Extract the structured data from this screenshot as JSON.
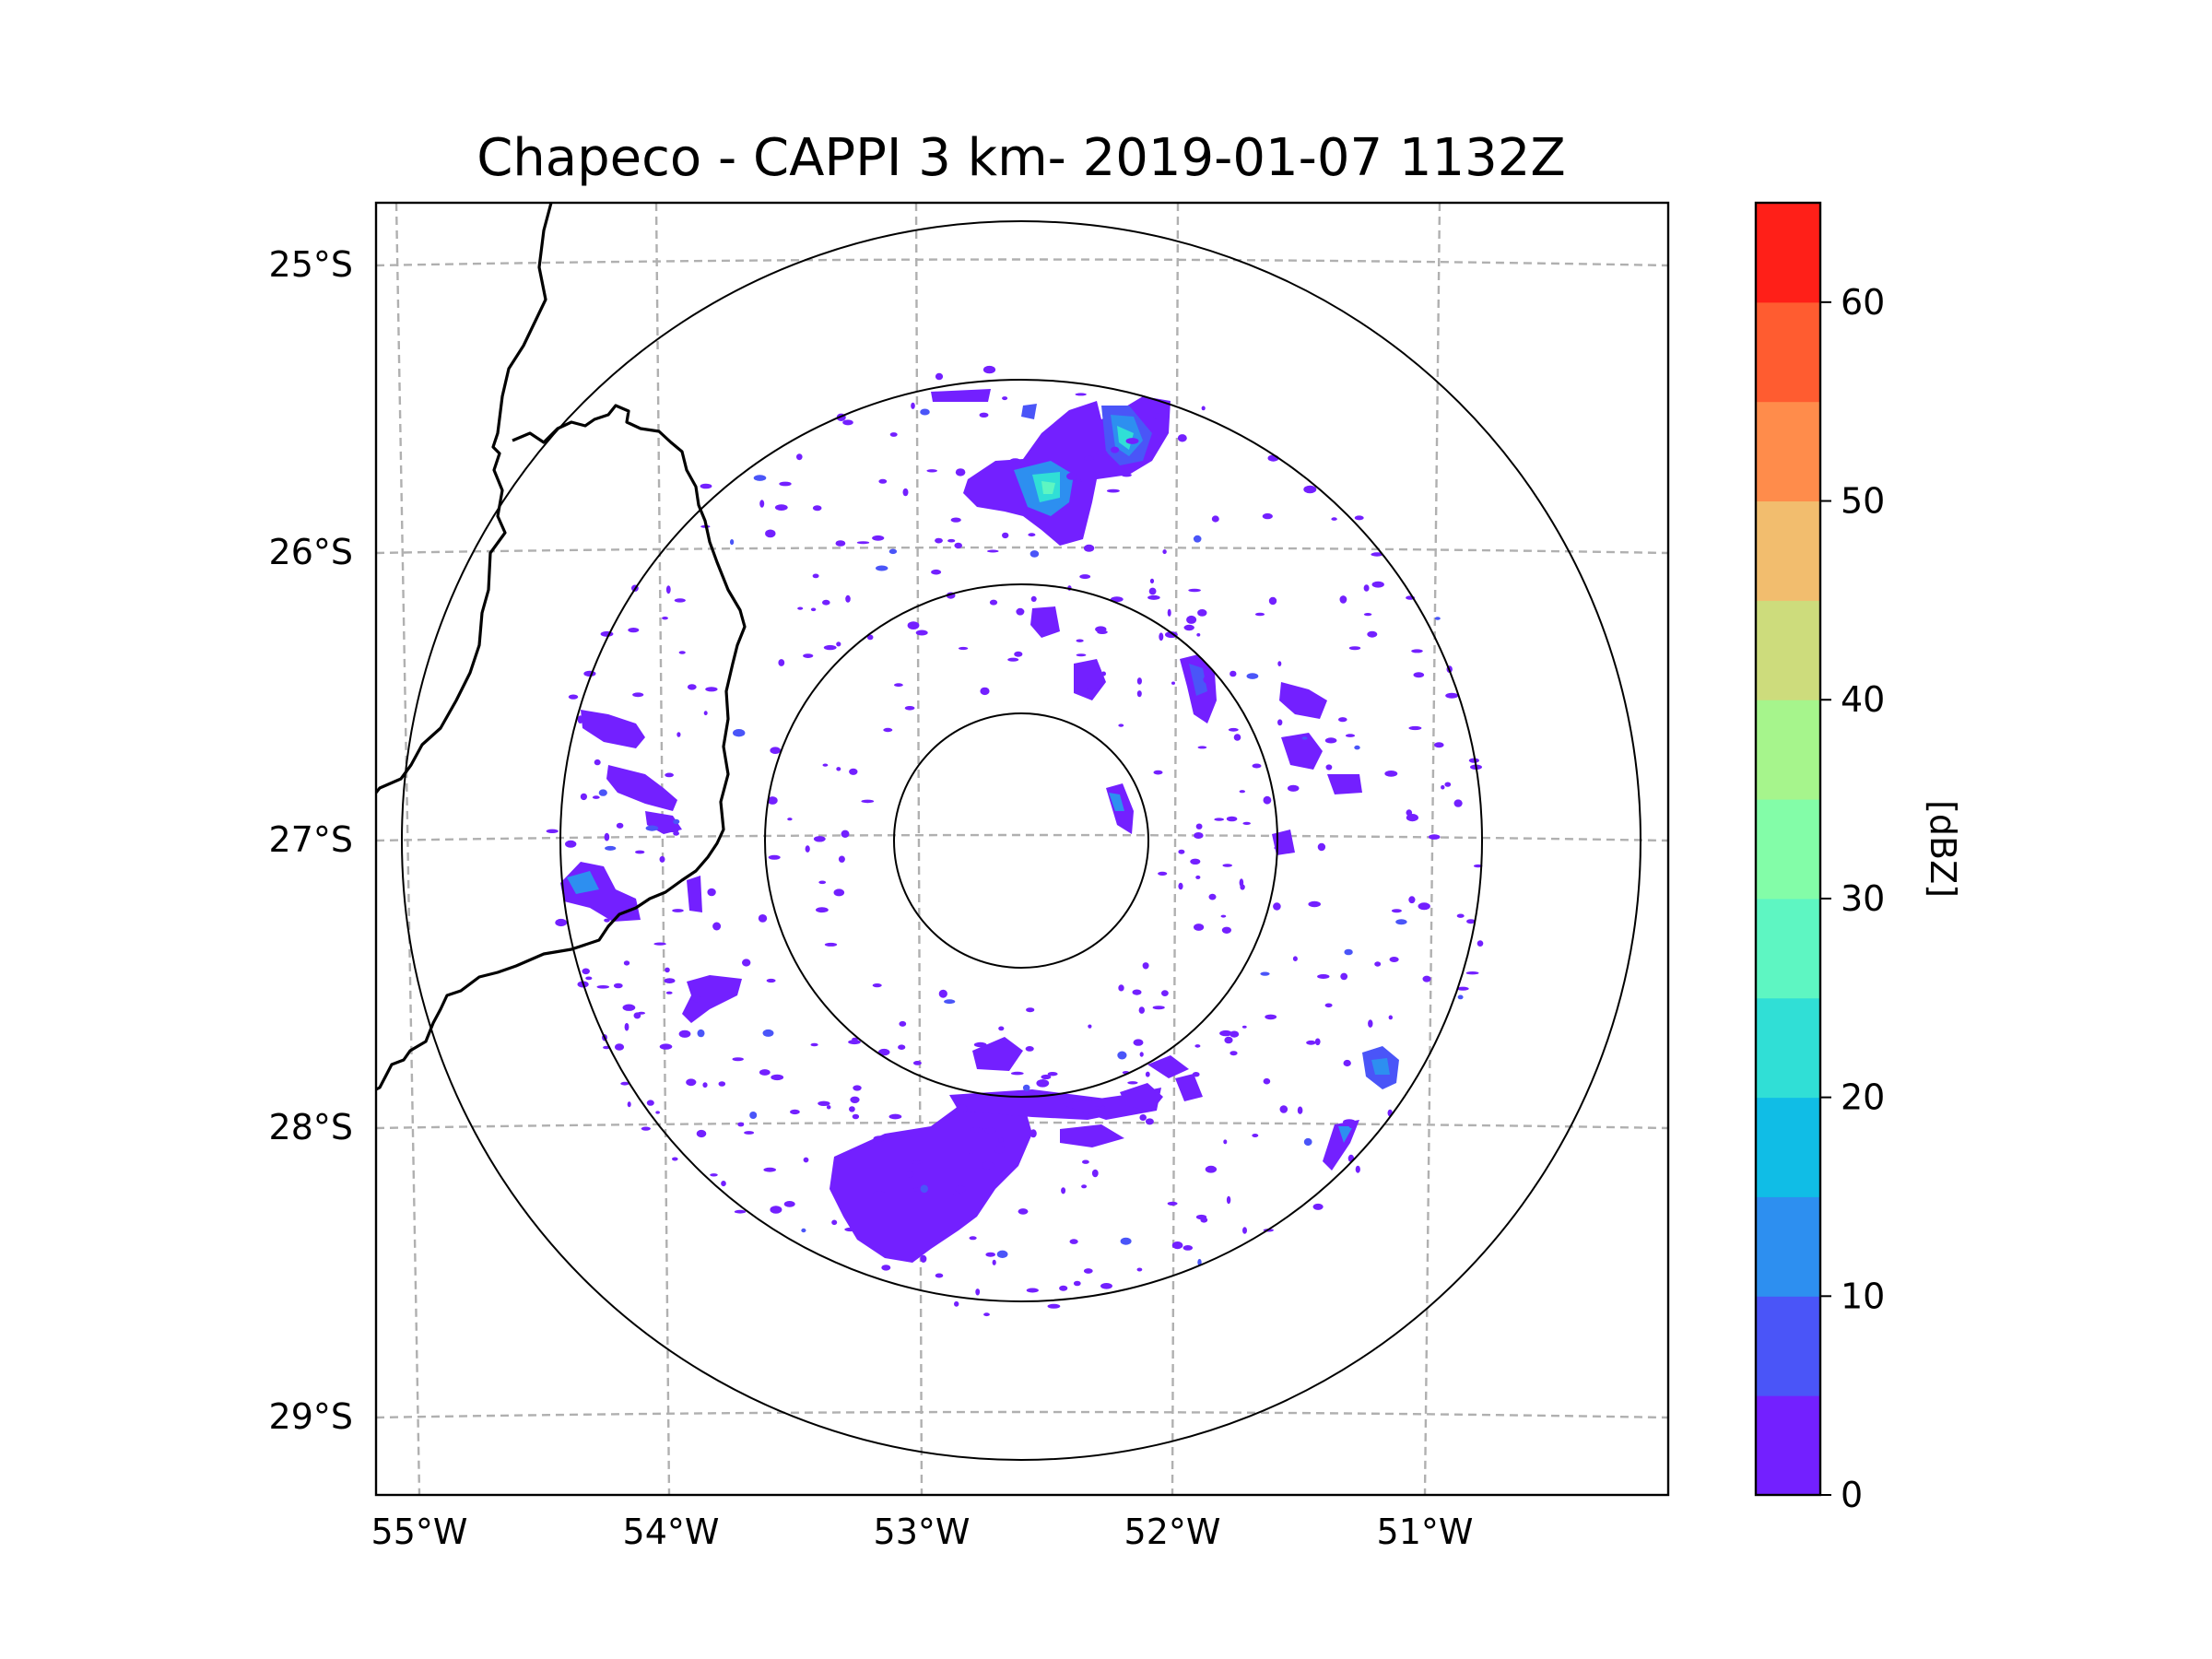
{
  "title": "Chapeco - CAPPI 3 km- 2019-01-07 1132Z",
  "map": {
    "lat_labels": [
      "25°S",
      "26°S",
      "27°S",
      "28°S",
      "29°S"
    ],
    "lon_labels": [
      "55°W",
      "54°W",
      "53°W",
      "52°W",
      "51°W"
    ],
    "lat_values": [
      -25,
      -26,
      -27,
      -28,
      -29
    ],
    "lon_values": [
      -55,
      -54,
      -53,
      -52,
      -51
    ],
    "range_rings_count": 4,
    "gridlines": "dashed gray"
  },
  "colorbar": {
    "label": "[dBZ]",
    "tick_labels": [
      "0",
      "10",
      "20",
      "30",
      "40",
      "50",
      "60"
    ],
    "tick_values": [
      0,
      10,
      20,
      30,
      40,
      50,
      60
    ],
    "range": [
      0,
      65
    ],
    "colors": [
      "#7320ff",
      "#4a55f8",
      "#2d8ff0",
      "#10bde6",
      "#30dfd6",
      "#5ef6c2",
      "#83fda8",
      "#a6f58c",
      "#cddc7c",
      "#f2bd6e",
      "#ff8c4b",
      "#ff5c30",
      "#ff1f18"
    ]
  }
}
